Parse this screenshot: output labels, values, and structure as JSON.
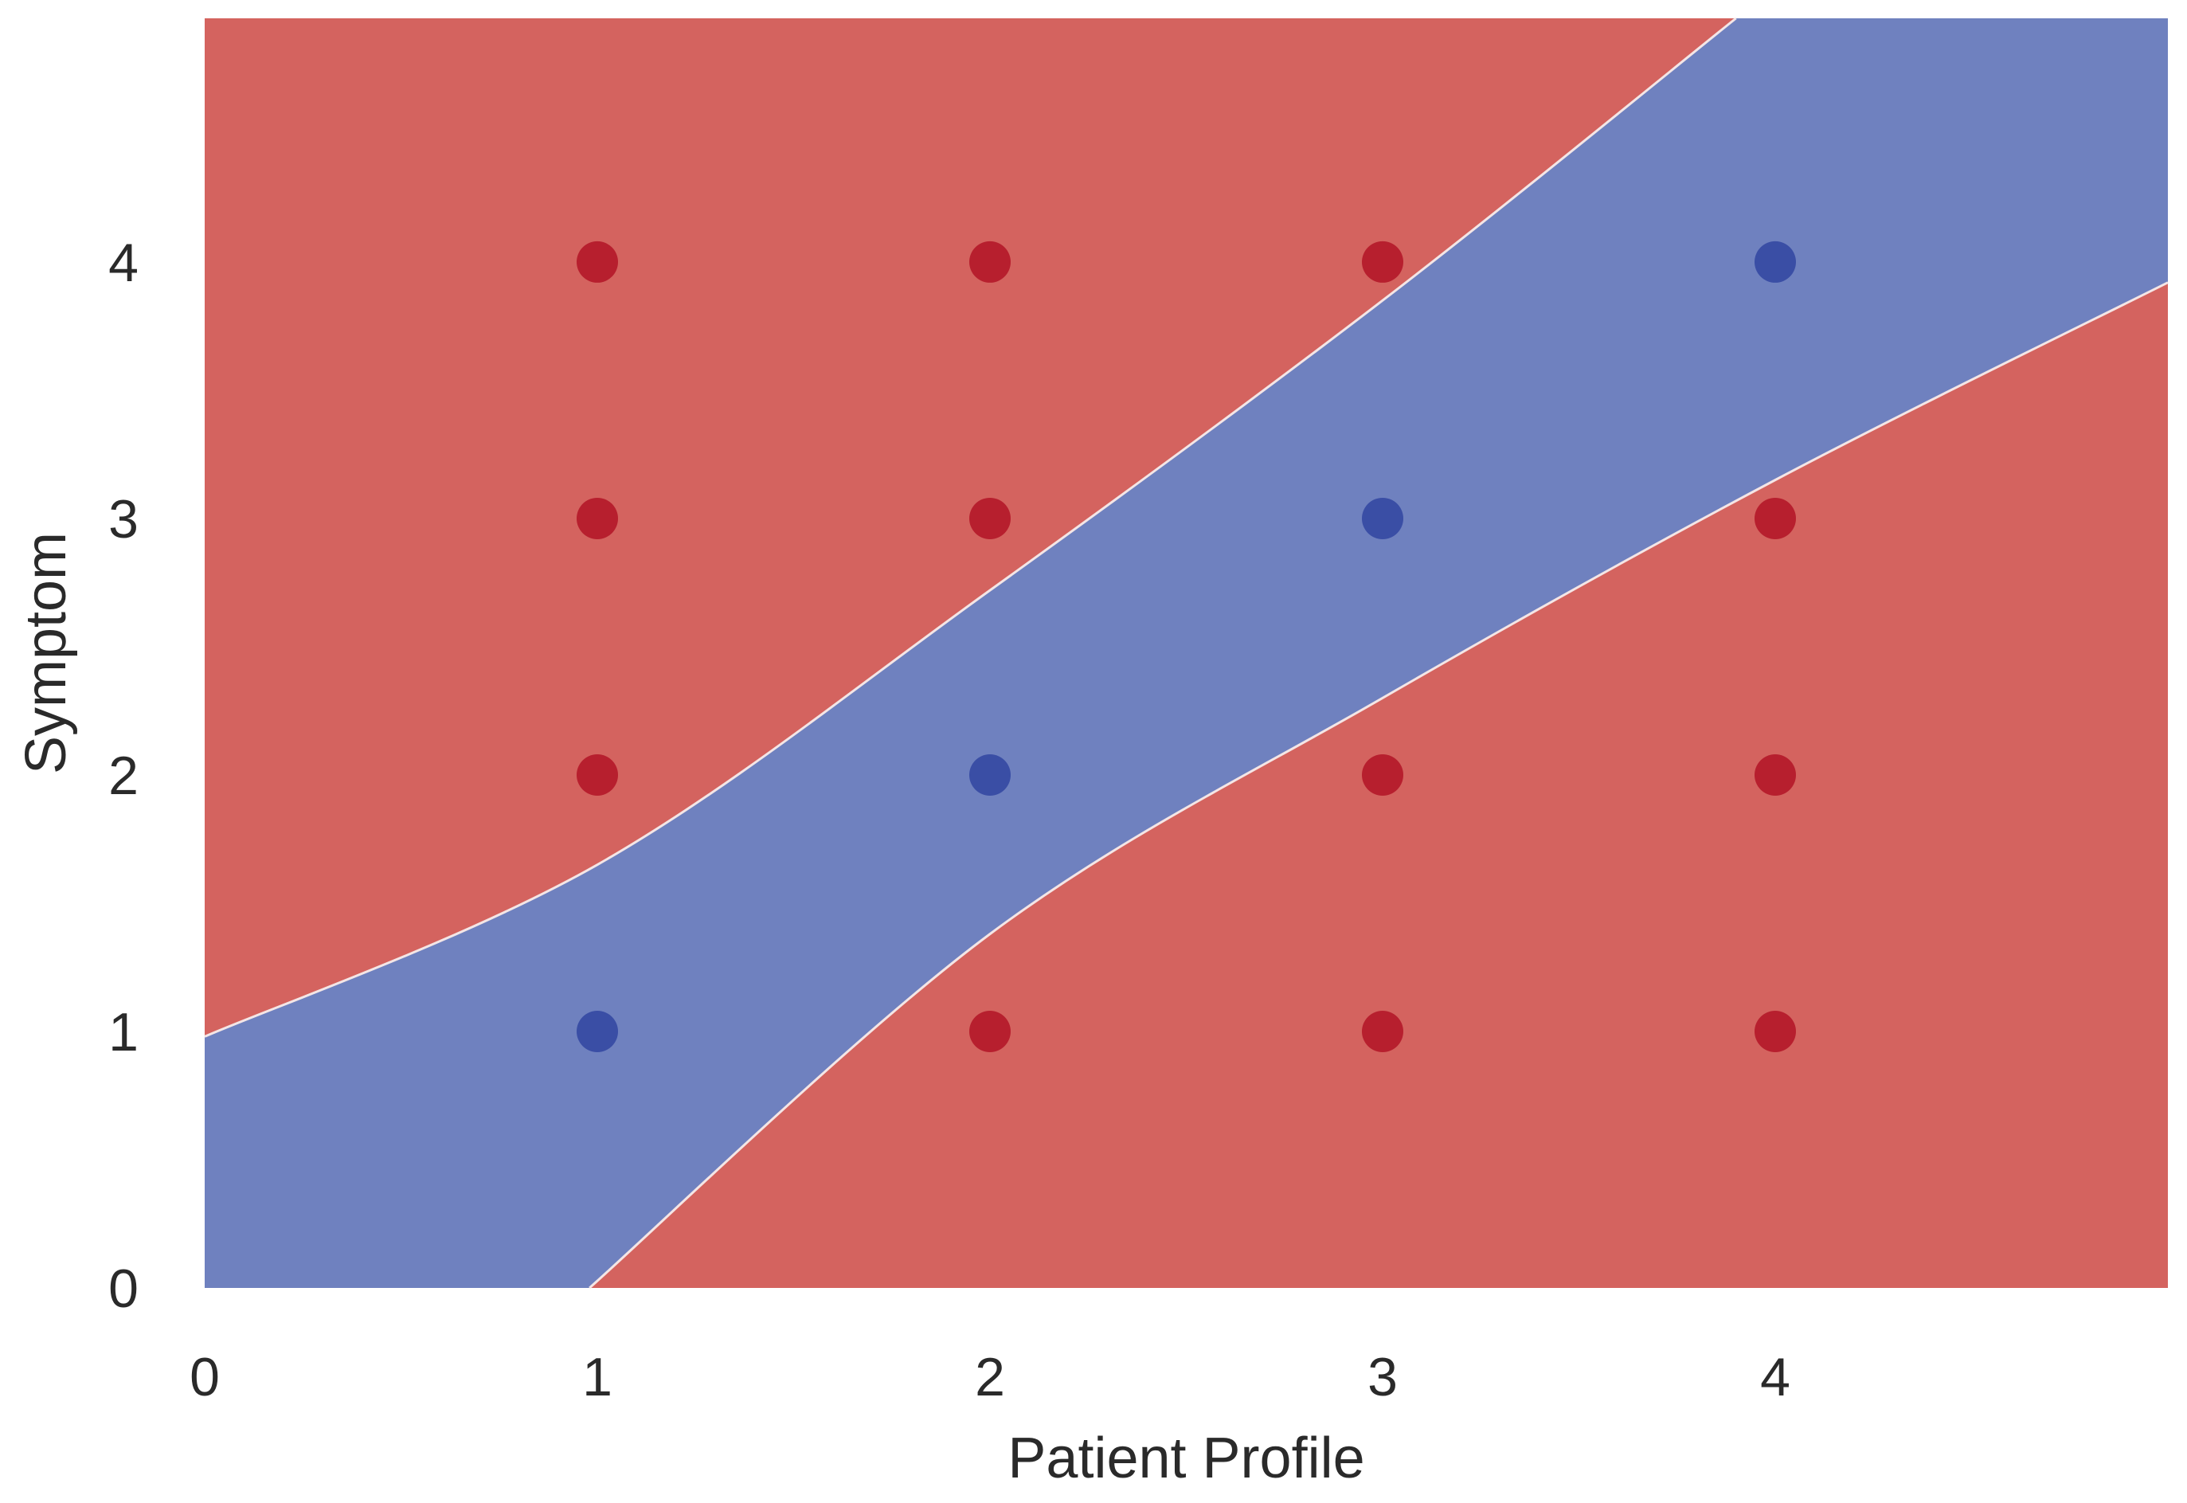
{
  "chart_data": {
    "type": "scatter",
    "title": "",
    "xlabel": "Patient Profile",
    "ylabel": "Symptom",
    "xlim": [
      0,
      5
    ],
    "ylim": [
      0,
      4.95
    ],
    "x_ticks": [
      "0",
      "1",
      "2",
      "3",
      "4"
    ],
    "y_ticks": [
      "0",
      "1",
      "2",
      "3",
      "4"
    ],
    "grid": false,
    "colors": {
      "region_red": "#d4635f",
      "region_blue": "#6f81bf",
      "point_red": "#b71f2e",
      "point_blue": "#3a4ea5"
    },
    "decision_boundaries": [
      {
        "name": "upper",
        "x": [
          0,
          1,
          2,
          3,
          3.9
        ],
        "y": [
          0.98,
          1.65,
          2.72,
          3.85,
          4.95
        ]
      },
      {
        "name": "lower",
        "x": [
          0.98,
          2,
          3,
          4,
          5
        ],
        "y": [
          0,
          1.38,
          2.3,
          3.15,
          3.92
        ]
      }
    ],
    "points": [
      {
        "x": 1,
        "y": 1,
        "class": "blue"
      },
      {
        "x": 1,
        "y": 2,
        "class": "red"
      },
      {
        "x": 1,
        "y": 3,
        "class": "red"
      },
      {
        "x": 1,
        "y": 4,
        "class": "red"
      },
      {
        "x": 2,
        "y": 1,
        "class": "red"
      },
      {
        "x": 2,
        "y": 2,
        "class": "blue"
      },
      {
        "x": 2,
        "y": 3,
        "class": "red"
      },
      {
        "x": 2,
        "y": 4,
        "class": "red"
      },
      {
        "x": 3,
        "y": 1,
        "class": "red"
      },
      {
        "x": 3,
        "y": 2,
        "class": "red"
      },
      {
        "x": 3,
        "y": 3,
        "class": "blue"
      },
      {
        "x": 3,
        "y": 4,
        "class": "red"
      },
      {
        "x": 4,
        "y": 1,
        "class": "red"
      },
      {
        "x": 4,
        "y": 2,
        "class": "red"
      },
      {
        "x": 4,
        "y": 3,
        "class": "red"
      },
      {
        "x": 4,
        "y": 4,
        "class": "blue"
      }
    ]
  }
}
